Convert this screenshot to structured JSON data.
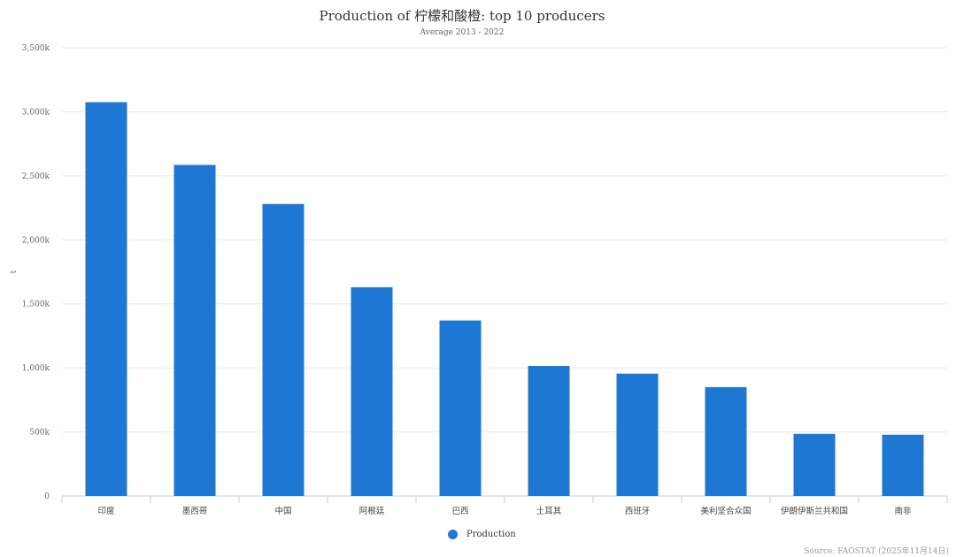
{
  "chart_data": {
    "type": "bar",
    "title": "Production of 柠檬和酸橙: top 10 producers",
    "subtitle": "Average 2013 - 2022",
    "xlabel": "",
    "ylabel": "t",
    "categories": [
      "印度",
      "墨西哥",
      "中国",
      "阿根廷",
      "巴西",
      "土耳其",
      "西班牙",
      "美利坚合众国",
      "伊朗伊斯兰共和国",
      "南非"
    ],
    "series": [
      {
        "name": "Production",
        "values": [
          3075000,
          2585000,
          2280000,
          1630000,
          1370000,
          1015000,
          955000,
          850000,
          485000,
          478000
        ]
      }
    ],
    "ylim": [
      0,
      3500000
    ],
    "yticks": [
      0,
      500000,
      1000000,
      1500000,
      2000000,
      2500000,
      3000000,
      3500000
    ],
    "ytick_labels": [
      "0",
      "500k",
      "1,000k",
      "1,500k",
      "2,000k",
      "2,500k",
      "3,000k",
      "3,500k"
    ],
    "grid": true,
    "legend_position": "bottom-center",
    "source": "Source: FAOSTAT (2025年11月14日)"
  },
  "colors": {
    "bar": "#1f77d4",
    "grid": "#e6e6e6",
    "axis": "#cccccc"
  }
}
